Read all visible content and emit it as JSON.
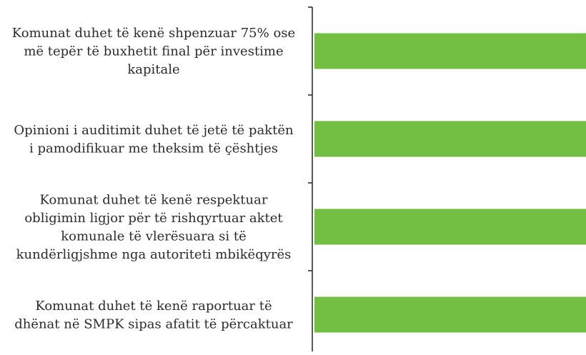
{
  "chart_data": {
    "type": "barh",
    "categories": [
      "Komunat duhet të kenë shpenzuar 75% ose\nmë tepër të buxhetit final për investime\nkapitale",
      "Opinioni i auditimit duhet të jetë të paktën\ni pamodifikuar me theksim të çështjes",
      "Komunat duhet të kenë respektuar\nobligimin ligjor për të rishqyrtuar aktet\nkomunale të vlerësuara si të\nkundërligjshme nga autoriteti mbikëqyrës",
      "Komunat duhet të kenë raportuar të\ndhënat në SMPK sipas afatit të përcaktuar"
    ],
    "values": [
      100,
      100,
      100,
      100
    ],
    "color": "#72bf44",
    "xlim": [
      0,
      100
    ]
  }
}
